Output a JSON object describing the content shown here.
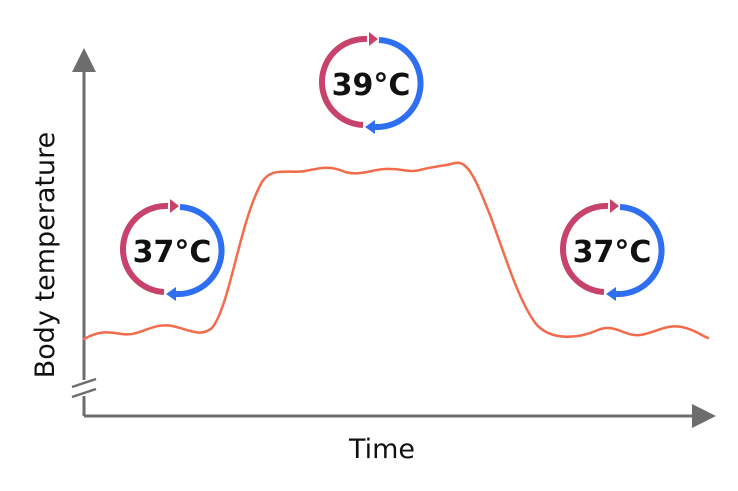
{
  "axes": {
    "x_label": "Time",
    "y_label": "Body temperature"
  },
  "setpoints": [
    {
      "label": "37°C",
      "phase": "before-fever"
    },
    {
      "label": "39°C",
      "phase": "fever"
    },
    {
      "label": "37°C",
      "phase": "after-fever"
    }
  ],
  "colors": {
    "curve": "#f26b4b",
    "axis": "#6d6d6d",
    "warm_arrow": "#c8436b",
    "cool_arrow": "#2d6ff0",
    "text": "#111111"
  }
}
